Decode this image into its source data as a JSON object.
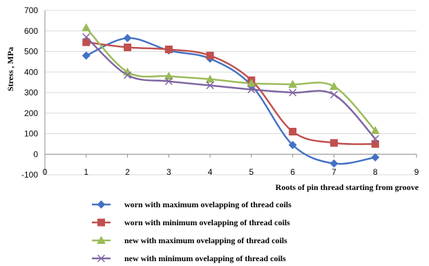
{
  "chart_data": {
    "type": "line",
    "title": "",
    "xlabel": "Roots of pin thread starting from groove",
    "ylabel": "Stress , MPa",
    "xlim": [
      0,
      9
    ],
    "ylim": [
      -100,
      700
    ],
    "x_ticks": [
      0,
      1,
      2,
      3,
      4,
      5,
      6,
      7,
      8,
      9
    ],
    "y_ticks": [
      -100,
      0,
      100,
      200,
      300,
      400,
      500,
      600,
      700
    ],
    "grid": "horizontal",
    "legend_position": "bottom",
    "x": [
      1,
      2,
      3,
      4,
      5,
      6,
      7,
      8
    ],
    "series": [
      {
        "name": "worn with maximum ovelapping of thread coils",
        "color": "#4472C4",
        "marker": "diamond",
        "values": [
          480,
          565,
          505,
          465,
          335,
          45,
          -45,
          -15
        ]
      },
      {
        "name": "worn with minimum ovelapping of thread coils",
        "color": "#C0504D",
        "marker": "square",
        "values": [
          545,
          520,
          510,
          480,
          360,
          110,
          55,
          50
        ]
      },
      {
        "name": "new with maximum ovelapping of thread coils",
        "color": "#9BBB59",
        "marker": "triangle",
        "values": [
          615,
          400,
          380,
          365,
          345,
          340,
          330,
          115
        ]
      },
      {
        "name": "new with minimum ovelapping of thread coils",
        "color": "#8064A2",
        "marker": "x",
        "values": [
          570,
          385,
          355,
          335,
          315,
          300,
          290,
          75
        ]
      }
    ]
  }
}
